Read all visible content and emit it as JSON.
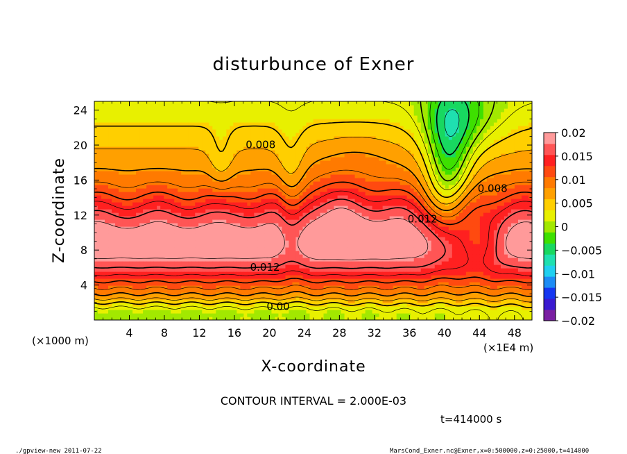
{
  "chart_data": {
    "type": "heatmap",
    "title": "disturbunce of Exner",
    "xlabel": "X-coordinate",
    "ylabel": "Z-coordinate",
    "x_unit_left": "(×1000 m)",
    "x_unit_right": "(×1E4 m)",
    "xlim": [
      0,
      50
    ],
    "ylim": [
      0,
      25
    ],
    "xticks": [
      4,
      8,
      12,
      16,
      20,
      24,
      28,
      32,
      36,
      40,
      44,
      48
    ],
    "yticks": [
      4,
      8,
      12,
      16,
      20,
      24
    ],
    "colorbar": {
      "min": -0.02,
      "max": 0.02,
      "ticks": [
        "0.02",
        "0.015",
        "0.01",
        "0.005",
        "0",
        "−0.005",
        "−0.01",
        "−0.015",
        "−0.02"
      ],
      "colors": [
        "#7a1fa2",
        "#3a1ad0",
        "#1536f0",
        "#1d8cf5",
        "#20d0f0",
        "#1fe0b0",
        "#18d860",
        "#3ee000",
        "#a2e800",
        "#e8f000",
        "#ffcf00",
        "#ffa000",
        "#ff7a00",
        "#ff4a10",
        "#ff2020",
        "#ff5555",
        "#ff9a9a"
      ]
    },
    "contour_labels": [
      {
        "text": "0.008",
        "x": 19,
        "z": 20
      },
      {
        "text": "0.008",
        "x": 45.5,
        "z": 15
      },
      {
        "text": "0.012",
        "x": 37.5,
        "z": 11.5
      },
      {
        "text": "0.012",
        "x": 19.5,
        "z": 6
      },
      {
        "text": "0.00",
        "x": 21,
        "z": 1.5
      }
    ],
    "grid": false,
    "legend": "colorbar-right"
  },
  "contour_interval_text": "CONTOUR INTERVAL = 2.000E-03",
  "time_text": "t=414000 s",
  "footer_left": "./gpview-new   2011-07-22",
  "footer_right": "MarsCond_Exner.nc@Exner,x=0:500000,z=0:25000,t=414000"
}
